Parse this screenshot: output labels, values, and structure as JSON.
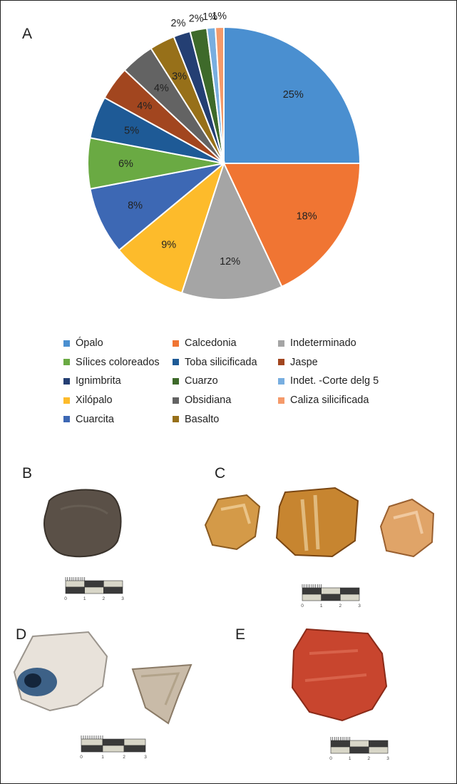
{
  "panels": {
    "a": "A",
    "b": "B",
    "c": "C",
    "d": "D",
    "e": "E"
  },
  "chart_data": {
    "type": "pie",
    "title": "",
    "start_angle_deg": 0,
    "direction": "clockwise",
    "slices": [
      {
        "label": "Ópalo",
        "value": 25,
        "display": "25%",
        "color": "#4a8fd0"
      },
      {
        "label": "Calcedonia",
        "value": 18,
        "display": "18%",
        "color": "#f07533"
      },
      {
        "label": "Indeterminado",
        "value": 12,
        "display": "12%",
        "color": "#a5a5a5"
      },
      {
        "label": "Xilópalo",
        "value": 9,
        "display": "9%",
        "color": "#fdbb2b"
      },
      {
        "label": "Cuarcita",
        "value": 8,
        "display": "8%",
        "color": "#3d68b4"
      },
      {
        "label": "Sílices coloreados",
        "value": 6,
        "display": "6%",
        "color": "#6aaa43"
      },
      {
        "label": "Toba silicificada",
        "value": 5,
        "display": "5%",
        "color": "#1e5a96"
      },
      {
        "label": "Jaspe",
        "value": 4,
        "display": "4%",
        "color": "#a2461f"
      },
      {
        "label": "Obsidiana",
        "value": 4,
        "display": "4%",
        "color": "#636363"
      },
      {
        "label": "Basalto",
        "value": 3,
        "display": "3%",
        "color": "#977019"
      },
      {
        "label": "Ignimbrita",
        "value": 2,
        "display": "2%",
        "color": "#243f73"
      },
      {
        "label": "Cuarzo",
        "value": 2,
        "display": "2%",
        "color": "#3e6a2a"
      },
      {
        "label": "Indet. -Corte delg 5",
        "value": 1,
        "display": "1%",
        "color": "#78aee0"
      },
      {
        "label": "Caliza silicificada",
        "value": 1,
        "display": "1%",
        "color": "#f59a6a"
      }
    ],
    "legend": {
      "position": "bottom",
      "columns": 3,
      "order": [
        "Ópalo",
        "Calcedonia",
        "Indeterminado",
        "Sílices coloreados",
        "Toba silicificada",
        "Jaspe",
        "Ignimbrita",
        "Cuarzo",
        "Indet. -Corte delg 5",
        "Xilópalo",
        "Obsidiana",
        "Caliza silicificada",
        "Cuarcita",
        "Basalto"
      ]
    }
  },
  "scale": {
    "ticks": [
      "0",
      "1",
      "2",
      "3"
    ],
    "unit": "5 mm"
  },
  "photos": {
    "b": [
      {
        "name": "basalt-flake",
        "color": "#5a5047",
        "edge": "#3a332c"
      }
    ],
    "c": [
      {
        "name": "chalcedony-1",
        "color": "#d49a48",
        "edge": "#8a5a20"
      },
      {
        "name": "chalcedony-2",
        "color": "#c78530",
        "edge": "#7a4612"
      },
      {
        "name": "chalcedony-3",
        "color": "#e0a468",
        "edge": "#9a6030"
      }
    ],
    "d": [
      {
        "name": "opal-1",
        "color": "#e8e2da",
        "edge": "#9a948c"
      },
      {
        "name": "opal-2",
        "color": "#c9bba8",
        "edge": "#8a7a66"
      }
    ],
    "e": [
      {
        "name": "jasper",
        "color": "#c8452e",
        "edge": "#8a2a18"
      }
    ]
  }
}
